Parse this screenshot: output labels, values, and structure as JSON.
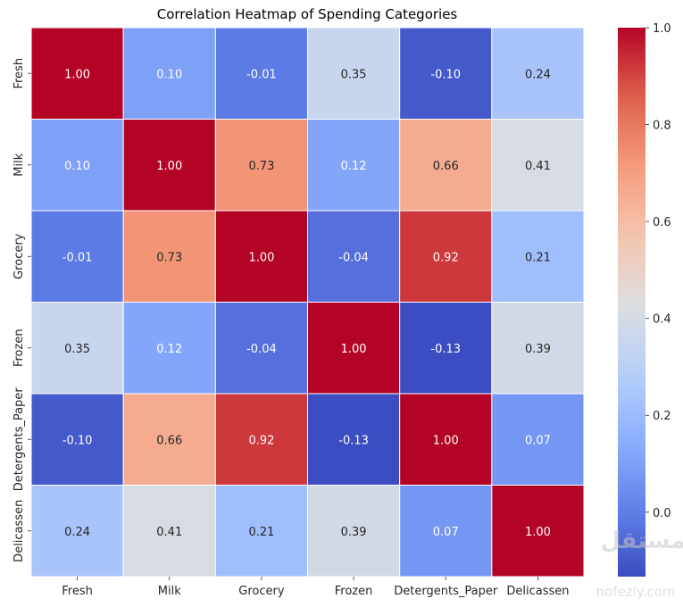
{
  "chart_data": {
    "type": "heatmap",
    "title": "Correlation Heatmap of Spending Categories",
    "xlabel": "",
    "ylabel": "",
    "x_categories": [
      "Fresh",
      "Milk",
      "Grocery",
      "Frozen",
      "Detergents_Paper",
      "Delicassen"
    ],
    "y_categories": [
      "Fresh",
      "Milk",
      "Grocery",
      "Frozen",
      "Detergents_Paper",
      "Delicassen"
    ],
    "values": [
      [
        1.0,
        0.1,
        -0.01,
        0.35,
        -0.1,
        0.24
      ],
      [
        0.1,
        1.0,
        0.73,
        0.12,
        0.66,
        0.41
      ],
      [
        -0.01,
        0.73,
        1.0,
        -0.04,
        0.92,
        0.21
      ],
      [
        0.35,
        0.12,
        -0.04,
        1.0,
        -0.13,
        0.39
      ],
      [
        -0.1,
        0.66,
        0.92,
        -0.13,
        1.0,
        0.07
      ],
      [
        0.24,
        0.41,
        0.21,
        0.39,
        0.07,
        1.0
      ]
    ],
    "annotation_format": "0.00",
    "colormap": "coolwarm",
    "color_range": [
      -0.133,
      1.0
    ],
    "colorbar": {
      "ticks": [
        0.0,
        0.2,
        0.4,
        0.6,
        0.8,
        1.0
      ],
      "tick_labels": [
        "0.0",
        "0.2",
        "0.4",
        "0.6",
        "0.8",
        "1.0"
      ],
      "placement": "right"
    },
    "grid_line_color": "#ffffff",
    "grid": false
  },
  "watermark": {
    "text": "nofezly.com",
    "arabic_text": "مستقل"
  }
}
